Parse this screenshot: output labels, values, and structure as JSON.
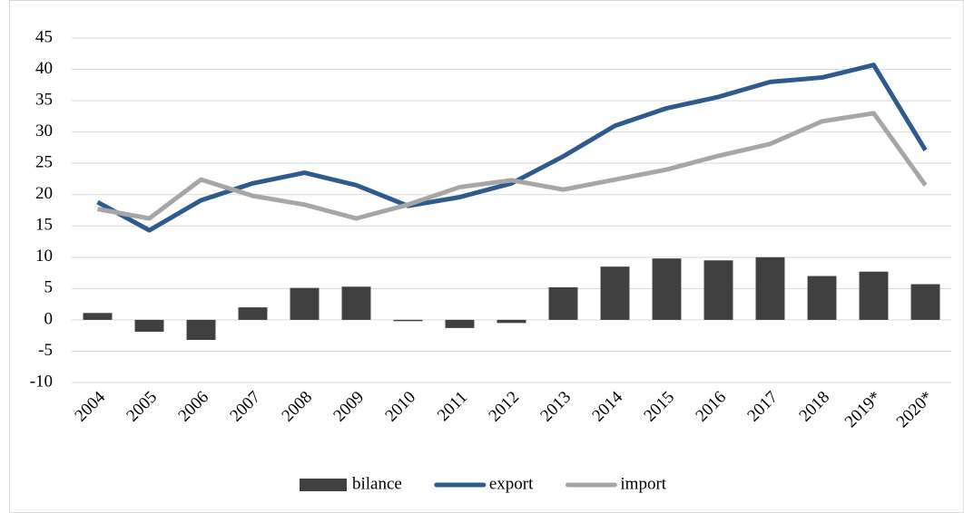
{
  "chart_data": {
    "type": "combo",
    "categories": [
      "2004",
      "2005",
      "2006",
      "2007",
      "2008",
      "2009",
      "2010",
      "2011",
      "2012",
      "2013",
      "2014",
      "2015",
      "2016",
      "2017",
      "2018",
      "2019*",
      "2020*"
    ],
    "series": [
      {
        "name": "bilance",
        "type": "bar",
        "color": "#404040",
        "values": [
          1.1,
          -1.9,
          -3.2,
          2.0,
          5.1,
          5.3,
          -0.2,
          -1.3,
          -0.5,
          5.2,
          8.5,
          9.8,
          9.5,
          10.0,
          7.0,
          7.7,
          5.7
        ]
      },
      {
        "name": "export",
        "type": "line",
        "color": "#2f5a8e",
        "values": [
          18.8,
          14.3,
          19.1,
          21.8,
          23.5,
          21.5,
          18.2,
          19.6,
          21.8,
          26.1,
          31.0,
          33.8,
          35.6,
          38.0,
          38.7,
          40.7,
          27.1
        ]
      },
      {
        "name": "import",
        "type": "line",
        "color": "#a6a6a6",
        "values": [
          17.7,
          16.2,
          22.4,
          19.8,
          18.4,
          16.2,
          18.4,
          21.2,
          22.3,
          20.8,
          22.4,
          24.0,
          26.2,
          28.1,
          31.7,
          33.0,
          21.5
        ]
      }
    ],
    "ylim": [
      -10,
      45
    ],
    "yticks": [
      -10,
      -5,
      0,
      5,
      10,
      15,
      20,
      25,
      30,
      35,
      40,
      45
    ],
    "grid": true,
    "legend": "bottom"
  }
}
